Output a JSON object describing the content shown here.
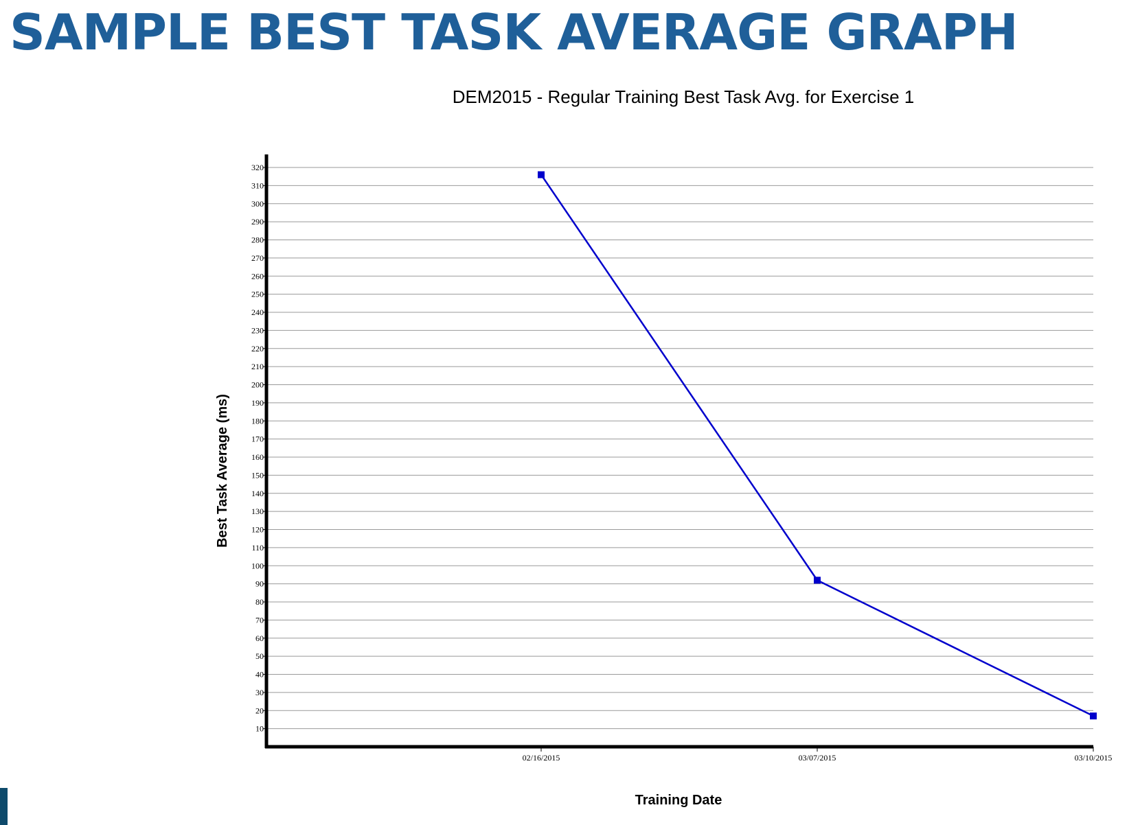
{
  "page": {
    "title": "SAMPLE BEST TASK AVERAGE GRAPH",
    "title_color": "#1f5f99",
    "accent_color": "#0e4a6b"
  },
  "chart_data": {
    "type": "line",
    "title": "DEM2015 - Regular Training Best Task Avg. for Exercise 1",
    "xlabel": "Training Date",
    "ylabel": "Best Task Average (ms)",
    "x": [
      "02/16/2015",
      "03/07/2015",
      "03/10/2015"
    ],
    "series": [
      {
        "values": [
          316,
          92,
          17
        ],
        "color": "#0000cc",
        "marker": "square"
      }
    ],
    "ylim": [
      0,
      327
    ],
    "yticks": [
      10,
      20,
      30,
      40,
      50,
      60,
      70,
      80,
      90,
      100,
      110,
      120,
      130,
      140,
      150,
      160,
      170,
      180,
      190,
      200,
      210,
      220,
      230,
      240,
      250,
      260,
      270,
      280,
      290,
      300,
      310,
      320
    ],
    "grid": true,
    "legend": "none"
  }
}
